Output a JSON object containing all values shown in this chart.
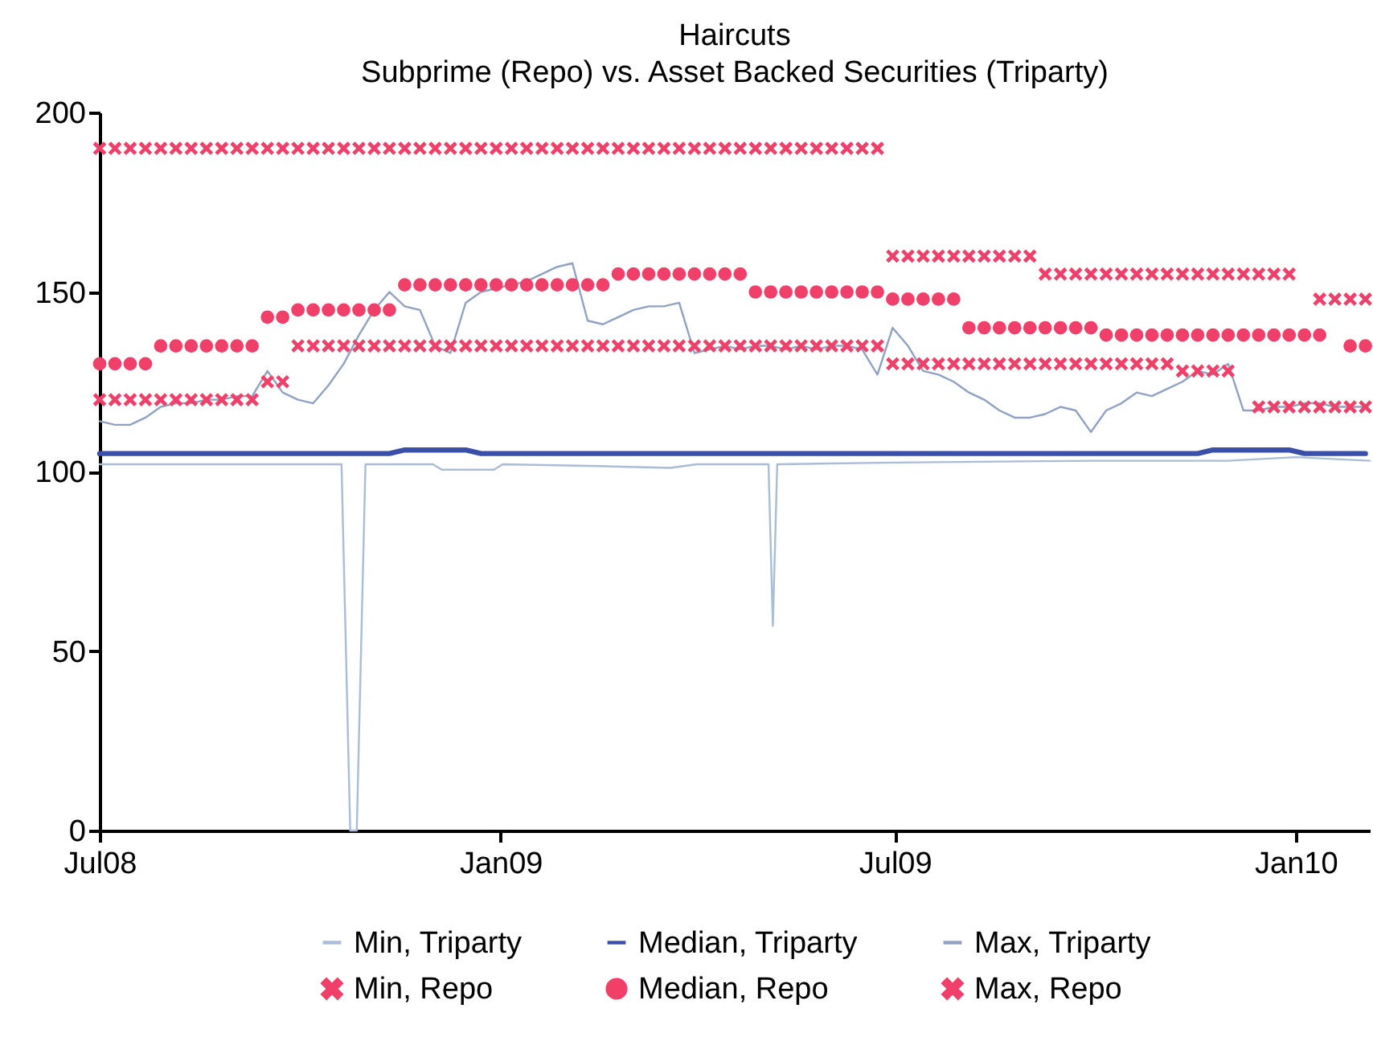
{
  "chart_data": {
    "type": "line",
    "title": "Haircuts",
    "subtitle": "Subprime (Repo) vs. Asset Backed Securities (Triparty)",
    "x": [
      "2008-07-01",
      "2008-07-08",
      "2008-07-15",
      "2008-07-22",
      "2008-07-29",
      "2008-08-05",
      "2008-08-12",
      "2008-08-19",
      "2008-08-26",
      "2008-09-02",
      "2008-09-09",
      "2008-09-16",
      "2008-09-23",
      "2008-09-30",
      "2008-10-07",
      "2008-10-14",
      "2008-10-21",
      "2008-10-28",
      "2008-11-04",
      "2008-11-11",
      "2008-11-18",
      "2008-11-25",
      "2008-12-02",
      "2008-12-09",
      "2008-12-16",
      "2008-12-23",
      "2008-12-30",
      "2009-01-06",
      "2009-01-13",
      "2009-01-20",
      "2009-01-27",
      "2009-02-03",
      "2009-02-10",
      "2009-02-17",
      "2009-02-24",
      "2009-03-03",
      "2009-03-10",
      "2009-03-17",
      "2009-03-24",
      "2009-03-31",
      "2009-04-07",
      "2009-04-14",
      "2009-04-21",
      "2009-04-28",
      "2009-05-05",
      "2009-05-12",
      "2009-05-19",
      "2009-05-26",
      "2009-06-02",
      "2009-06-09",
      "2009-06-16",
      "2009-06-23",
      "2009-06-30",
      "2009-07-07",
      "2009-07-14",
      "2009-07-21",
      "2009-07-28",
      "2009-08-04",
      "2009-08-11",
      "2009-08-18",
      "2009-08-25",
      "2009-09-01",
      "2009-09-08",
      "2009-09-15",
      "2009-09-22",
      "2009-09-29",
      "2009-10-06",
      "2009-10-13",
      "2009-10-20",
      "2009-10-27",
      "2009-11-03",
      "2009-11-10",
      "2009-11-17",
      "2009-11-24",
      "2009-12-01",
      "2009-12-08",
      "2009-12-15",
      "2009-12-22",
      "2009-12-29",
      "2010-01-05",
      "2010-01-12",
      "2010-01-19",
      "2010-01-26",
      "2010-02-02"
    ],
    "series": [
      {
        "name": "Min, Triparty",
        "color": "#a9bcd8",
        "x": [
          "2008-07-01",
          "2008-08-15",
          "2008-10-20",
          "2008-10-24",
          "2008-10-27",
          "2008-10-31",
          "2008-12-01",
          "2008-12-05",
          "2008-12-29",
          "2009-01-02",
          "2009-02-15",
          "2009-03-20",
          "2009-04-01",
          "2009-05-04",
          "2009-05-06",
          "2009-05-08",
          "2009-07-01",
          "2009-10-01",
          "2009-12-01",
          "2010-01-01",
          "2010-02-04"
        ],
        "values": [
          102,
          102,
          102,
          0,
          0,
          102,
          102,
          100.5,
          100.5,
          102,
          101.5,
          101,
          102,
          102,
          57,
          102,
          102.5,
          103,
          103,
          104,
          103
        ]
      },
      {
        "name": "Median, Triparty",
        "color": "#3a4fa8",
        "values": [
          105,
          105,
          105,
          105,
          105,
          105,
          105,
          105,
          105,
          105,
          105,
          105,
          105,
          105,
          105,
          105,
          105,
          105,
          105,
          105,
          106,
          106,
          106,
          106,
          106,
          105,
          105,
          105,
          105,
          105,
          105,
          105,
          105,
          105,
          105,
          105,
          105,
          105,
          105,
          105,
          105,
          105,
          105,
          105,
          105,
          105,
          105,
          105,
          105,
          105,
          105,
          105,
          105,
          105,
          105,
          105,
          105,
          105,
          105,
          105,
          105,
          105,
          105,
          105,
          105,
          105,
          105,
          105,
          105,
          105,
          105,
          105,
          105,
          106,
          106,
          106,
          106,
          106,
          106,
          105,
          105,
          105,
          105,
          105
        ]
      },
      {
        "name": "Max, Triparty",
        "color": "#8fa2c4",
        "values": [
          114,
          113,
          113,
          115,
          118,
          119,
          119,
          120,
          120,
          121,
          121,
          128,
          122,
          120,
          119,
          124,
          130,
          138,
          145,
          150,
          146,
          145,
          135,
          133,
          147,
          150,
          151,
          152,
          153,
          155,
          157,
          158,
          142,
          141,
          143,
          145,
          146,
          146,
          147,
          133,
          134,
          135,
          134,
          135,
          135,
          134,
          135,
          134,
          135,
          135,
          134,
          127,
          140,
          135,
          128,
          127,
          125,
          122,
          120,
          117,
          115,
          115,
          116,
          118,
          117,
          111,
          117,
          119,
          122,
          121,
          123,
          125,
          128,
          127,
          130,
          117,
          117,
          118,
          118,
          119,
          119,
          118,
          118,
          118
        ]
      },
      {
        "name": "Min, Repo",
        "type": "scatter",
        "marker": "cross",
        "color": "#f0406a",
        "values": [
          120,
          120,
          120,
          120,
          120,
          120,
          120,
          120,
          120,
          120,
          120,
          125,
          125,
          135,
          135,
          135,
          135,
          135,
          135,
          135,
          135,
          135,
          135,
          135,
          135,
          135,
          135,
          135,
          135,
          135,
          135,
          135,
          135,
          135,
          135,
          135,
          135,
          135,
          135,
          135,
          135,
          135,
          135,
          135,
          135,
          135,
          135,
          135,
          135,
          135,
          135,
          135,
          130,
          130,
          130,
          130,
          130,
          130,
          130,
          130,
          130,
          130,
          130,
          130,
          130,
          130,
          130,
          130,
          130,
          130,
          130,
          128,
          128,
          128,
          128,
          null,
          118,
          118,
          118,
          118,
          118,
          118,
          118,
          118
        ]
      },
      {
        "name": "Median, Repo",
        "type": "scatter",
        "marker": "circle",
        "color": "#f0406a",
        "values": [
          130,
          130,
          130,
          130,
          135,
          135,
          135,
          135,
          135,
          135,
          135,
          143,
          143,
          145,
          145,
          145,
          145,
          145,
          145,
          145,
          152,
          152,
          152,
          152,
          152,
          152,
          152,
          152,
          152,
          152,
          152,
          152,
          152,
          152,
          155,
          155,
          155,
          155,
          155,
          155,
          155,
          155,
          155,
          150,
          150,
          150,
          150,
          150,
          150,
          150,
          150,
          150,
          148,
          148,
          148,
          148,
          148,
          140,
          140,
          140,
          140,
          140,
          140,
          140,
          140,
          140,
          138,
          138,
          138,
          138,
          138,
          138,
          138,
          138,
          138,
          138,
          138,
          138,
          138,
          138,
          138,
          null,
          135,
          135
        ]
      },
      {
        "name": "Max, Repo",
        "type": "scatter",
        "marker": "cross",
        "color": "#f0406a",
        "values": [
          190,
          190,
          190,
          190,
          190,
          190,
          190,
          190,
          190,
          190,
          190,
          190,
          190,
          190,
          190,
          190,
          190,
          190,
          190,
          190,
          190,
          190,
          190,
          190,
          190,
          190,
          190,
          190,
          190,
          190,
          190,
          190,
          190,
          190,
          190,
          190,
          190,
          190,
          190,
          190,
          190,
          190,
          190,
          190,
          190,
          190,
          190,
          190,
          190,
          190,
          190,
          190,
          160,
          160,
          160,
          160,
          160,
          160,
          160,
          160,
          160,
          160,
          155,
          155,
          155,
          155,
          155,
          155,
          155,
          155,
          155,
          155,
          155,
          155,
          155,
          155,
          155,
          155,
          155,
          null,
          148,
          148,
          148,
          148
        ]
      }
    ],
    "xlim": [
      "2008-07-01",
      "2010-02-04"
    ],
    "xticks": [
      {
        "value": "2008-07-01",
        "label": "Jul08"
      },
      {
        "value": "2009-01-01",
        "label": "Jan09"
      },
      {
        "value": "2009-07-01",
        "label": "Jul09"
      },
      {
        "value": "2010-01-01",
        "label": "Jan10"
      }
    ],
    "ylim": [
      0,
      200
    ],
    "yticks": [
      0,
      50,
      100,
      150,
      200
    ],
    "legend": "bottom"
  }
}
